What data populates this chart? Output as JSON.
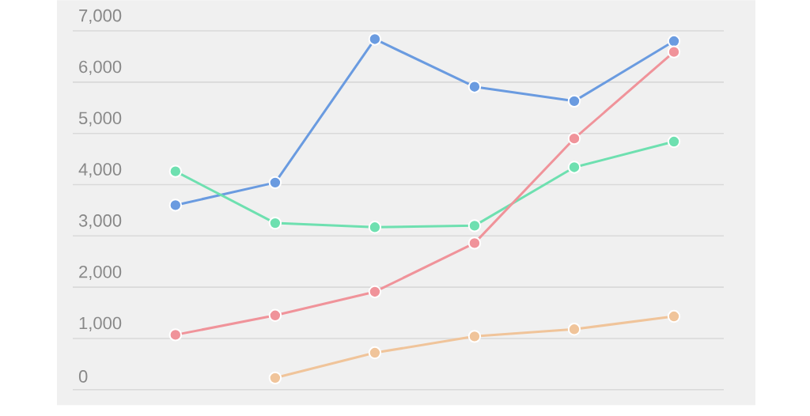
{
  "chart_data": {
    "type": "line",
    "categories": [
      null,
      null,
      null,
      null,
      null,
      null
    ],
    "series": [
      {
        "color": "#6a9be0",
        "values": [
          3600,
          4040,
          6840,
          5910,
          5630,
          6800
        ]
      },
      {
        "color": "#6ee0b0",
        "values": [
          4260,
          3250,
          3170,
          3200,
          4340,
          4840
        ]
      },
      {
        "color": "#f0939a",
        "values": [
          1070,
          1450,
          1910,
          2860,
          4900,
          6590
        ]
      },
      {
        "color": "#f0c49a",
        "values": [
          null,
          230,
          720,
          1040,
          1180,
          1430
        ]
      }
    ],
    "ylim": [
      -300,
      7600
    ],
    "yticks": [
      0,
      {
        "value": 1000,
        "label": "1,000"
      },
      {
        "value": 2000,
        "label": "2,000"
      },
      {
        "value": 3000,
        "label": "3,000"
      },
      {
        "value": 4000,
        "label": "4,000"
      },
      {
        "value": 5000,
        "label": "5,000"
      },
      {
        "value": 6000,
        "label": "6,000"
      },
      {
        "value": 7000,
        "label": "7,000"
      }
    ],
    "grid": "y",
    "marker": "circle",
    "line_style": "solid"
  }
}
